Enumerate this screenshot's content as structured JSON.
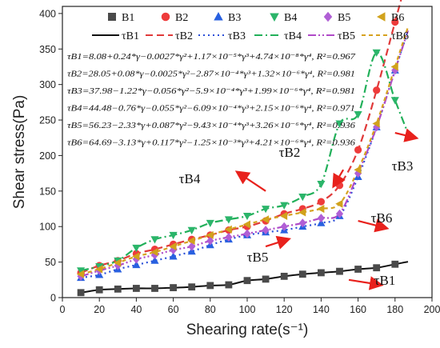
{
  "chart_data": {
    "type": "scatter",
    "xlabel": "Shearing rate(s⁻¹)",
    "ylabel": "Shear stress(Pa)",
    "xlim": [
      0,
      200
    ],
    "ylim": [
      0,
      410
    ],
    "xticks": [
      "0",
      "20",
      "40",
      "60",
      "80",
      "100",
      "120",
      "140",
      "160",
      "180",
      "200"
    ],
    "yticks": [
      "0",
      "50",
      "100",
      "150",
      "200",
      "250",
      "300",
      "350",
      "400"
    ],
    "x": [
      10,
      20,
      30,
      40,
      50,
      60,
      70,
      80,
      90,
      100,
      110,
      120,
      130,
      140,
      150,
      160,
      170,
      180
    ],
    "legend_position": "top",
    "series": [
      {
        "name": "B1",
        "marker": "square",
        "color": "#4a4a4a",
        "values": [
          7,
          11,
          12,
          13,
          13,
          14,
          15,
          17,
          18,
          24,
          26,
          30,
          33,
          35,
          37,
          40,
          42,
          47
        ]
      },
      {
        "name": "B2",
        "marker": "circle",
        "color": "#ee3b3b",
        "values": [
          35,
          45,
          52,
          62,
          68,
          75,
          82,
          88,
          95,
          100,
          108,
          118,
          125,
          135,
          158,
          208,
          292,
          388
        ]
      },
      {
        "name": "B3",
        "marker": "triangle-up",
        "color": "#2860e0",
        "values": [
          28,
          32,
          40,
          46,
          52,
          58,
          65,
          74,
          82,
          88,
          92,
          95,
          100,
          105,
          115,
          170,
          240,
          320
        ]
      },
      {
        "name": "B4",
        "marker": "triangle-down",
        "color": "#2bb56a",
        "values": [
          38,
          44,
          52,
          70,
          82,
          88,
          95,
          105,
          110,
          115,
          125,
          130,
          142,
          160,
          245,
          258,
          345,
          278
        ]
      },
      {
        "name": "B5",
        "marker": "diamond",
        "color": "#b05fd5",
        "values": [
          30,
          38,
          45,
          54,
          60,
          67,
          72,
          80,
          85,
          90,
          95,
          100,
          105,
          112,
          118,
          175,
          240,
          320
        ]
      },
      {
        "name": "B6",
        "marker": "triangle-left",
        "color": "#d1a21c",
        "values": [
          33,
          40,
          49,
          58,
          64,
          72,
          80,
          88,
          96,
          103,
          110,
          115,
          120,
          125,
          132,
          180,
          245,
          325
        ]
      }
    ],
    "fit_lines": [
      {
        "name": "τB1",
        "color": "#111111",
        "dash": "solid",
        "x_end": 187
      },
      {
        "name": "τB2",
        "color": "#e03a3a",
        "dash": "dash",
        "x_end": 187
      },
      {
        "name": "τB3",
        "color": "#2a4fd8",
        "dash": "dot",
        "x_end": 187
      },
      {
        "name": "τB4",
        "color": "#22b05a",
        "dash": "dashdot",
        "x_end": 187
      },
      {
        "name": "τB5",
        "color": "#b04ac8",
        "dash": "dashdotdot",
        "x_end": 187
      },
      {
        "name": "τB6",
        "color": "#d6a21f",
        "dash": "shortdash",
        "x_end": 187
      }
    ],
    "equations": [
      "τB1=8.08+0.24*γ−0.0027*γ²+1.17×10⁻⁵*γ³+4.74×10⁻⁸*γ⁴, R²=0.967",
      "τB2=28.05+0.08*γ−0.0025*γ²−2.87×10⁻⁴*γ³+1.32×10⁻⁶*γ⁴, R²=0.981",
      "τB3=37.98−1.22*γ−0.056*γ²−5.9×10⁻⁴*γ³+1.99×10⁻⁶*γ⁴, R²=0.981",
      "τB4=44.48−0.76*γ−0.055*γ²−6.09×10⁻⁴*γ³+2.15×10⁻⁶*γ⁴, R²=0.971",
      "τB5=56.23−2.33*γ+0.087*γ²−9.43×10⁻⁴*γ³+3.26×10⁻⁶*γ⁴, R²=0.936",
      "τB6=64.69−3.13*γ+0.117*γ²−1.25×10⁻³*γ³+4.21×10⁻⁶*γ⁴, R²=0.936"
    ],
    "annotations": [
      {
        "label": "τB4",
        "arrow_from": [
          110,
          150
        ],
        "arrow_to": [
          95,
          176
        ]
      },
      {
        "label": "τB2",
        "arrow_from": [
          152,
          180
        ],
        "arrow_to": [
          147,
          158
        ]
      },
      {
        "label": "τB3",
        "arrow_from": [
          180,
          232
        ],
        "arrow_to": [
          191,
          225
        ]
      },
      {
        "label": "τB6",
        "arrow_from": [
          160,
          108
        ],
        "arrow_to": [
          175,
          98
        ]
      },
      {
        "label": "τB5",
        "arrow_from": [
          110,
          72
        ],
        "arrow_to": [
          122,
          82
        ]
      },
      {
        "label": "τB1",
        "arrow_from": [
          155,
          25
        ],
        "arrow_to": [
          172,
          18
        ]
      }
    ]
  }
}
